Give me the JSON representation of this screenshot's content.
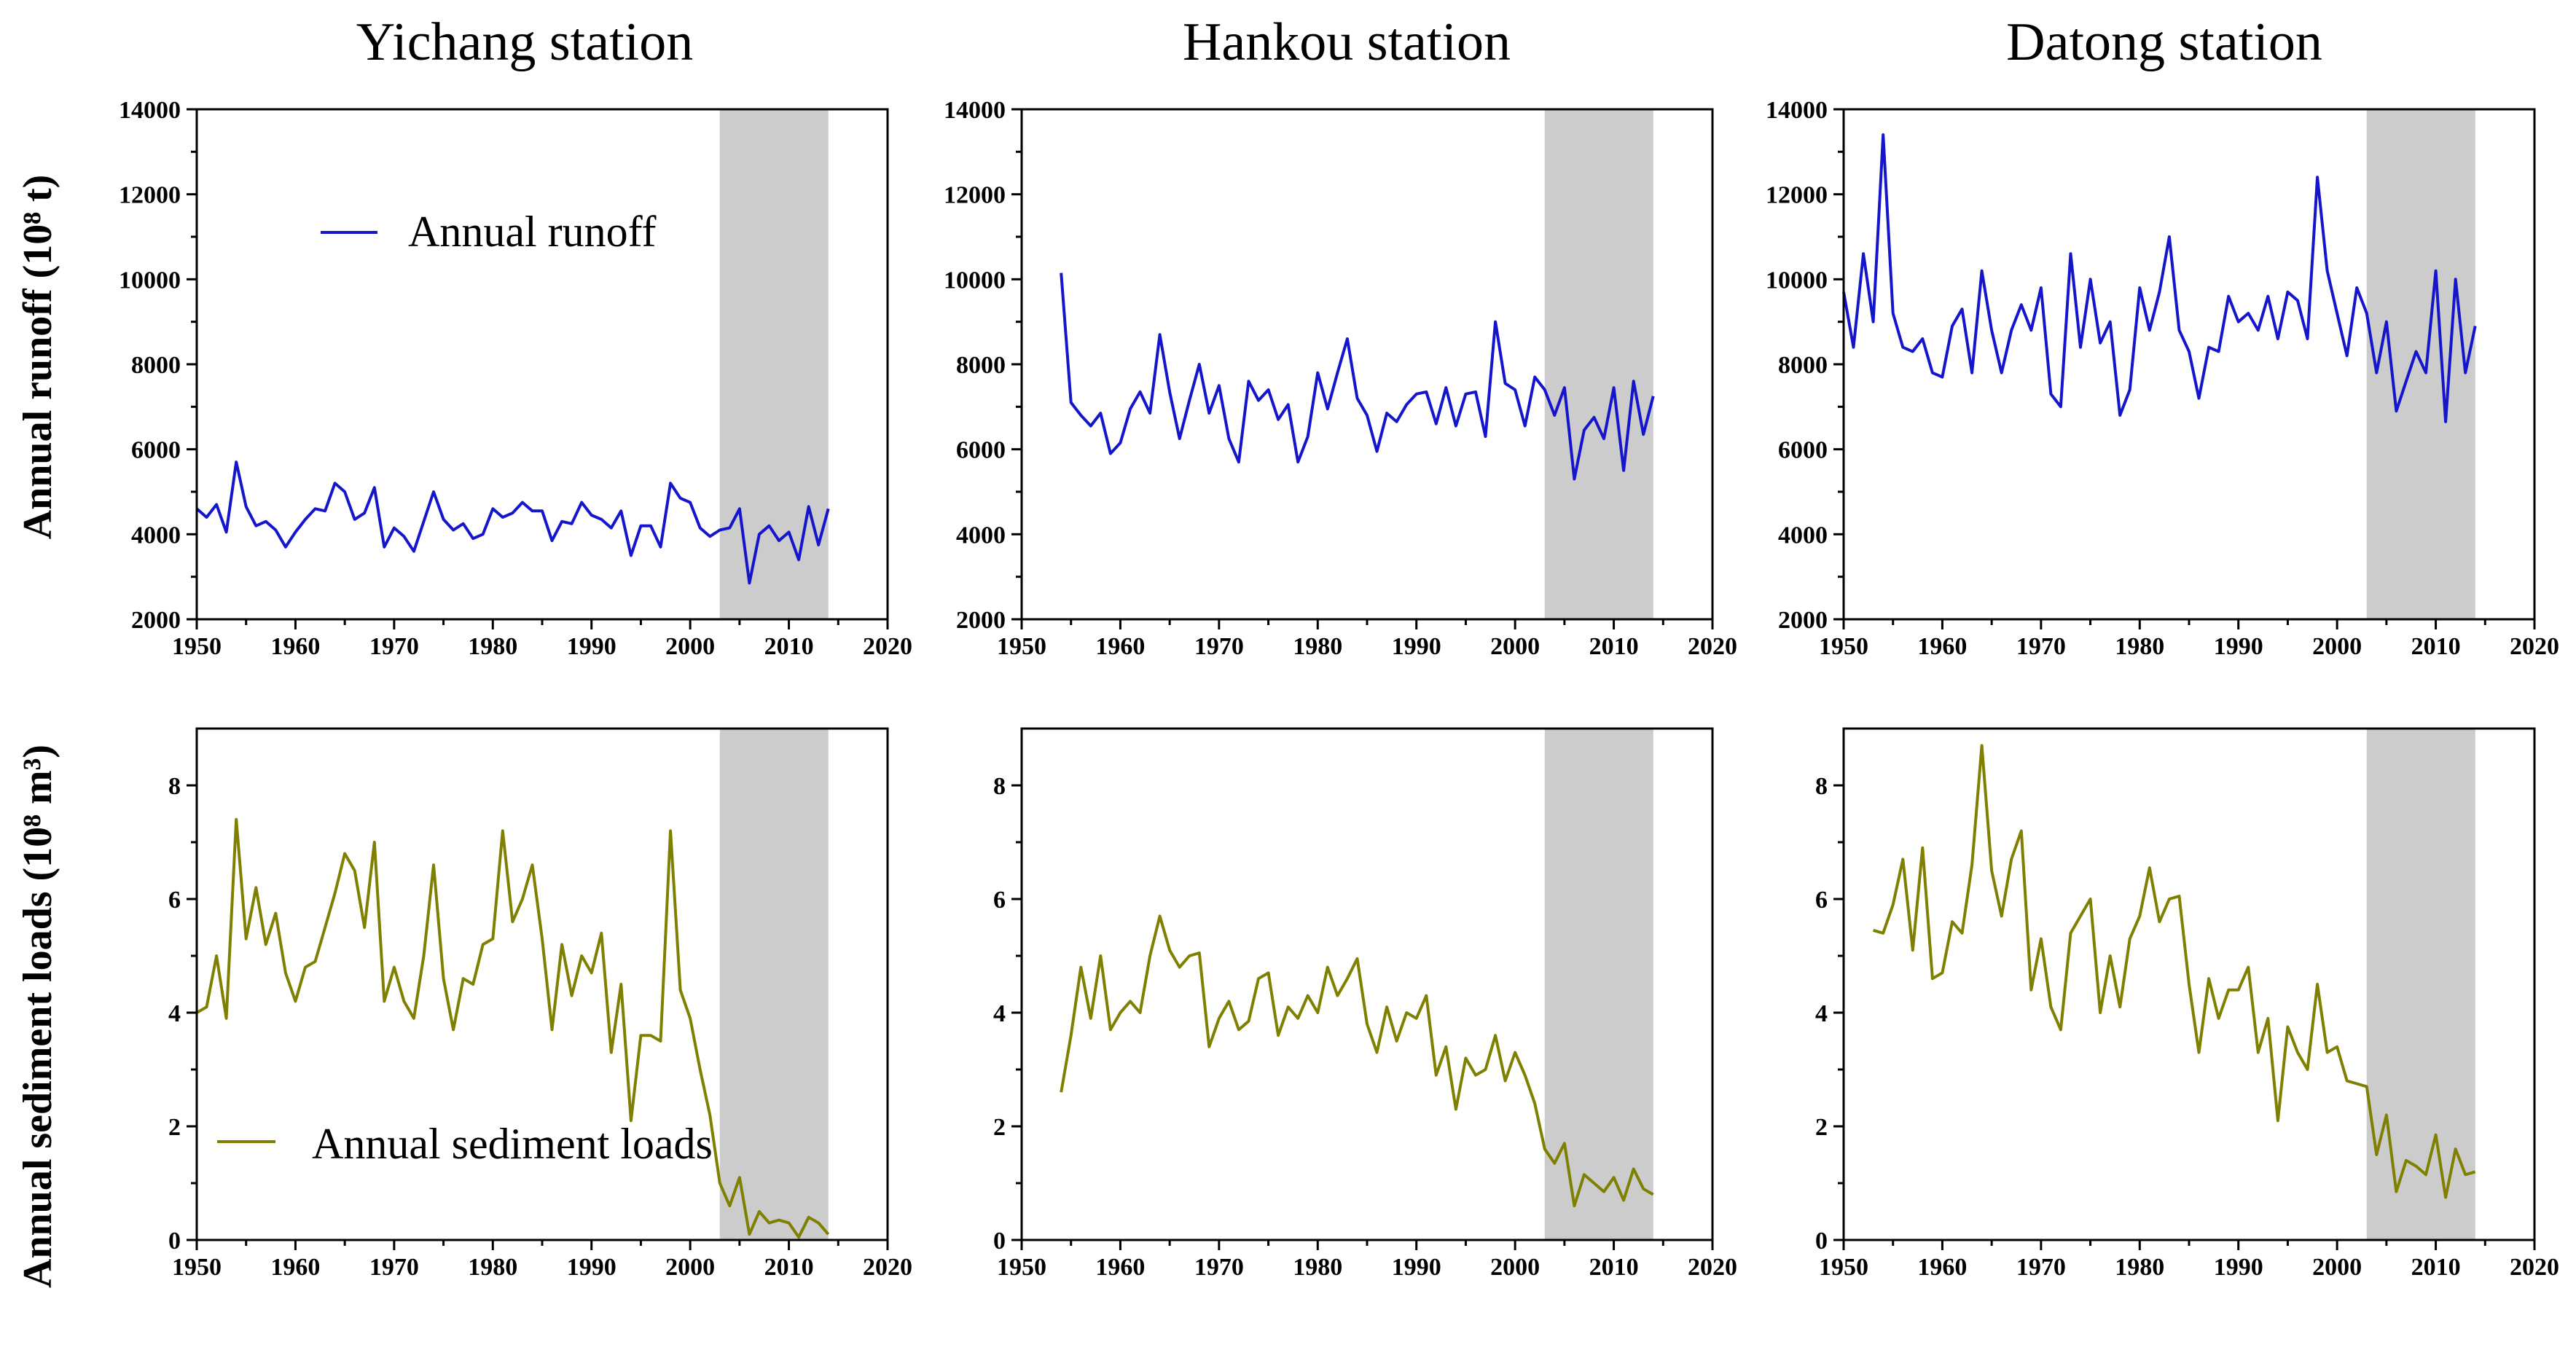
{
  "chart_data": [
    {
      "type": "line",
      "station": "Yichang",
      "title": "Yichang station",
      "ylabel": "Annual runoff (10⁸ t)",
      "xlim": [
        1950,
        2020
      ],
      "ylim": [
        2000,
        14000
      ],
      "xticks": [
        1950,
        1960,
        1970,
        1980,
        1990,
        2000,
        2010,
        2020
      ],
      "yticks": [
        2000,
        4000,
        6000,
        8000,
        10000,
        12000,
        14000
      ],
      "shaded_range": [
        2003,
        2014
      ],
      "legend": "Annual runoff",
      "series": [
        {
          "name": "Annual runoff",
          "color": "#1515cc",
          "x": [
            1950,
            1951,
            1952,
            1953,
            1954,
            1955,
            1956,
            1957,
            1958,
            1959,
            1960,
            1961,
            1962,
            1963,
            1964,
            1965,
            1966,
            1967,
            1968,
            1969,
            1970,
            1971,
            1972,
            1973,
            1974,
            1975,
            1976,
            1977,
            1978,
            1979,
            1980,
            1981,
            1982,
            1983,
            1984,
            1985,
            1986,
            1987,
            1988,
            1989,
            1990,
            1991,
            1992,
            1993,
            1994,
            1995,
            1996,
            1997,
            1998,
            1999,
            2000,
            2001,
            2002,
            2003,
            2004,
            2005,
            2006,
            2007,
            2008,
            2009,
            2010,
            2011,
            2012,
            2013,
            2014
          ],
          "values": [
            4600,
            4400,
            4700,
            4050,
            5700,
            4650,
            4200,
            4300,
            4100,
            3700,
            4050,
            4350,
            4600,
            4550,
            5200,
            5000,
            4350,
            4500,
            5100,
            3700,
            4150,
            3950,
            3600,
            4300,
            5000,
            4350,
            4100,
            4250,
            3900,
            4000,
            4600,
            4400,
            4500,
            4750,
            4550,
            4550,
            3850,
            4300,
            4250,
            4750,
            4450,
            4350,
            4150,
            4550,
            3500,
            4200,
            4200,
            3700,
            5200,
            4850,
            4750,
            4150,
            3950,
            4100,
            4150,
            4600,
            2850,
            4000,
            4200,
            3850,
            4050,
            3400,
            4650,
            3750,
            4600
          ]
        }
      ]
    },
    {
      "type": "line",
      "station": "Hankou",
      "title": "Hankou station",
      "xlim": [
        1950,
        2020
      ],
      "ylim": [
        2000,
        14000
      ],
      "xticks": [
        1950,
        1960,
        1970,
        1980,
        1990,
        2000,
        2010,
        2020
      ],
      "yticks": [
        2000,
        4000,
        6000,
        8000,
        10000,
        12000,
        14000
      ],
      "shaded_range": [
        2003,
        2014
      ],
      "series": [
        {
          "name": "Annual runoff",
          "color": "#1515cc",
          "x": [
            1954,
            1955,
            1956,
            1957,
            1958,
            1959,
            1960,
            1961,
            1962,
            1963,
            1964,
            1965,
            1966,
            1967,
            1968,
            1969,
            1970,
            1971,
            1972,
            1973,
            1974,
            1975,
            1976,
            1977,
            1978,
            1979,
            1980,
            1981,
            1982,
            1983,
            1984,
            1985,
            1986,
            1987,
            1988,
            1989,
            1990,
            1991,
            1992,
            1993,
            1994,
            1995,
            1996,
            1997,
            1998,
            1999,
            2000,
            2001,
            2002,
            2003,
            2004,
            2005,
            2006,
            2007,
            2008,
            2009,
            2010,
            2011,
            2012,
            2013,
            2014
          ],
          "values": [
            10150,
            7100,
            6800,
            6550,
            6850,
            5900,
            6150,
            6950,
            7350,
            6850,
            8700,
            7350,
            6250,
            7150,
            8000,
            6850,
            7500,
            6250,
            5700,
            7600,
            7150,
            7400,
            6700,
            7050,
            5700,
            6300,
            7800,
            6950,
            7800,
            8600,
            7200,
            6800,
            5950,
            6850,
            6650,
            7050,
            7300,
            7350,
            6600,
            7450,
            6550,
            7300,
            7350,
            6300,
            9000,
            7550,
            7400,
            6550,
            7700,
            7400,
            6800,
            7450,
            5300,
            6450,
            6750,
            6250,
            7450,
            5500,
            7600,
            6350,
            7250
          ]
        }
      ]
    },
    {
      "type": "line",
      "station": "Datong",
      "title": "Datong station",
      "xlim": [
        1950,
        2020
      ],
      "ylim": [
        2000,
        14000
      ],
      "xticks": [
        1950,
        1960,
        1970,
        1980,
        1990,
        2000,
        2010,
        2020
      ],
      "yticks": [
        2000,
        4000,
        6000,
        8000,
        10000,
        12000,
        14000
      ],
      "shaded_range": [
        2003,
        2014
      ],
      "series": [
        {
          "name": "Annual runoff",
          "color": "#1515cc",
          "x": [
            1950,
            1951,
            1952,
            1953,
            1954,
            1955,
            1956,
            1957,
            1958,
            1959,
            1960,
            1961,
            1962,
            1963,
            1964,
            1965,
            1966,
            1967,
            1968,
            1969,
            1970,
            1971,
            1972,
            1973,
            1974,
            1975,
            1976,
            1977,
            1978,
            1979,
            1980,
            1981,
            1982,
            1983,
            1984,
            1985,
            1986,
            1987,
            1988,
            1989,
            1990,
            1991,
            1992,
            1993,
            1994,
            1995,
            1996,
            1997,
            1998,
            1999,
            2000,
            2001,
            2002,
            2003,
            2004,
            2005,
            2006,
            2007,
            2008,
            2009,
            2010,
            2011,
            2012,
            2013,
            2014
          ],
          "values": [
            9700,
            8400,
            10600,
            9000,
            13400,
            9200,
            8400,
            8300,
            8600,
            7800,
            7700,
            8900,
            9300,
            7800,
            10200,
            8800,
            7800,
            8800,
            9400,
            8800,
            9800,
            7300,
            7000,
            10600,
            8400,
            10000,
            8500,
            9000,
            6800,
            7400,
            9800,
            8800,
            9700,
            11000,
            8800,
            8300,
            7200,
            8400,
            8300,
            9600,
            9000,
            9200,
            8800,
            9600,
            8600,
            9700,
            9500,
            8600,
            12400,
            10200,
            9200,
            8200,
            9800,
            9200,
            7800,
            9000,
            6900,
            7600,
            8300,
            7800,
            10200,
            6650,
            10000,
            7800,
            8900
          ]
        }
      ]
    },
    {
      "type": "line",
      "station": "Yichang",
      "ylabel": "Annual sediment loads (10⁸ m³)",
      "xlim": [
        1950,
        2020
      ],
      "ylim": [
        0,
        9
      ],
      "xticks": [
        1950,
        1960,
        1970,
        1980,
        1990,
        2000,
        2010,
        2020
      ],
      "yticks": [
        0,
        2,
        4,
        6,
        8
      ],
      "shaded_range": [
        2003,
        2014
      ],
      "legend": "Annual sediment loads",
      "series": [
        {
          "name": "Annual sediment loads",
          "color": "#808000",
          "x": [
            1950,
            1951,
            1952,
            1953,
            1954,
            1955,
            1956,
            1957,
            1958,
            1959,
            1960,
            1961,
            1962,
            1963,
            1964,
            1965,
            1966,
            1967,
            1968,
            1969,
            1970,
            1971,
            1972,
            1973,
            1974,
            1975,
            1976,
            1977,
            1978,
            1979,
            1980,
            1981,
            1982,
            1983,
            1984,
            1985,
            1986,
            1987,
            1988,
            1989,
            1990,
            1991,
            1992,
            1993,
            1994,
            1995,
            1996,
            1997,
            1998,
            1999,
            2000,
            2001,
            2002,
            2003,
            2004,
            2005,
            2006,
            2007,
            2008,
            2009,
            2010,
            2011,
            2012,
            2013,
            2014
          ],
          "values": [
            4.0,
            4.1,
            5.0,
            3.9,
            7.4,
            5.3,
            6.2,
            5.2,
            5.75,
            4.7,
            4.2,
            4.8,
            4.9,
            5.5,
            6.1,
            6.8,
            6.5,
            5.5,
            7.0,
            4.2,
            4.8,
            4.2,
            3.9,
            5.0,
            6.6,
            4.6,
            3.7,
            4.6,
            4.5,
            5.2,
            5.3,
            7.2,
            5.6,
            6.0,
            6.6,
            5.3,
            3.7,
            5.2,
            4.3,
            5.0,
            4.7,
            5.4,
            3.3,
            4.5,
            2.1,
            3.6,
            3.6,
            3.5,
            7.2,
            4.4,
            3.9,
            3.0,
            2.2,
            1.0,
            0.6,
            1.1,
            0.1,
            0.5,
            0.3,
            0.35,
            0.3,
            0.05,
            0.4,
            0.3,
            0.1
          ]
        }
      ]
    },
    {
      "type": "line",
      "station": "Hankou",
      "xlim": [
        1950,
        2020
      ],
      "ylim": [
        0,
        9
      ],
      "xticks": [
        1950,
        1960,
        1970,
        1980,
        1990,
        2000,
        2010,
        2020
      ],
      "yticks": [
        0,
        2,
        4,
        6,
        8
      ],
      "shaded_range": [
        2003,
        2014
      ],
      "series": [
        {
          "name": "Annual sediment loads",
          "color": "#808000",
          "x": [
            1954,
            1955,
            1956,
            1957,
            1958,
            1959,
            1960,
            1961,
            1962,
            1963,
            1964,
            1965,
            1966,
            1967,
            1968,
            1969,
            1970,
            1971,
            1972,
            1973,
            1974,
            1975,
            1976,
            1977,
            1978,
            1979,
            1980,
            1981,
            1982,
            1983,
            1984,
            1985,
            1986,
            1987,
            1988,
            1989,
            1990,
            1991,
            1992,
            1993,
            1994,
            1995,
            1996,
            1997,
            1998,
            1999,
            2000,
            2001,
            2002,
            2003,
            2004,
            2005,
            2006,
            2007,
            2008,
            2009,
            2010,
            2011,
            2012,
            2013,
            2014
          ],
          "values": [
            2.6,
            3.6,
            4.8,
            3.9,
            5.0,
            3.7,
            4.0,
            4.2,
            4.0,
            5.0,
            5.7,
            5.1,
            4.8,
            5.0,
            5.05,
            3.4,
            3.9,
            4.2,
            3.7,
            3.85,
            4.6,
            4.7,
            3.6,
            4.1,
            3.9,
            4.3,
            4.0,
            4.8,
            4.3,
            4.6,
            4.95,
            3.8,
            3.3,
            4.1,
            3.5,
            4.0,
            3.9,
            4.3,
            2.9,
            3.4,
            2.3,
            3.2,
            2.9,
            3.0,
            3.6,
            2.8,
            3.3,
            2.9,
            2.4,
            1.6,
            1.35,
            1.7,
            0.6,
            1.15,
            1.0,
            0.85,
            1.1,
            0.7,
            1.25,
            0.9,
            0.8
          ]
        }
      ]
    },
    {
      "type": "line",
      "station": "Datong",
      "xlim": [
        1950,
        2020
      ],
      "ylim": [
        0,
        9
      ],
      "xticks": [
        1950,
        1960,
        1970,
        1980,
        1990,
        2000,
        2010,
        2020
      ],
      "yticks": [
        0,
        2,
        4,
        6,
        8
      ],
      "shaded_range": [
        2003,
        2014
      ],
      "series": [
        {
          "name": "Annual sediment loads",
          "color": "#808000",
          "x": [
            1953,
            1954,
            1955,
            1956,
            1957,
            1958,
            1959,
            1960,
            1961,
            1962,
            1963,
            1964,
            1965,
            1966,
            1967,
            1968,
            1969,
            1970,
            1971,
            1972,
            1973,
            1974,
            1975,
            1976,
            1977,
            1978,
            1979,
            1980,
            1981,
            1982,
            1983,
            1984,
            1985,
            1986,
            1987,
            1988,
            1989,
            1990,
            1991,
            1992,
            1993,
            1994,
            1995,
            1996,
            1997,
            1998,
            1999,
            2000,
            2001,
            2002,
            2003,
            2004,
            2005,
            2006,
            2007,
            2008,
            2009,
            2010,
            2011,
            2012,
            2013,
            2014
          ],
          "values": [
            5.45,
            5.4,
            5.9,
            6.7,
            5.1,
            6.9,
            4.6,
            4.7,
            5.6,
            5.4,
            6.6,
            8.7,
            6.5,
            5.7,
            6.7,
            7.2,
            4.4,
            5.3,
            4.1,
            3.7,
            5.4,
            5.7,
            6.0,
            4.0,
            5.0,
            4.1,
            5.3,
            5.7,
            6.55,
            5.6,
            6.0,
            6.05,
            4.5,
            3.3,
            4.6,
            3.9,
            4.4,
            4.4,
            4.8,
            3.3,
            3.9,
            2.1,
            3.75,
            3.3,
            3.0,
            4.5,
            3.3,
            3.4,
            2.8,
            2.75,
            2.7,
            1.5,
            2.2,
            0.85,
            1.4,
            1.3,
            1.15,
            1.85,
            0.75,
            1.6,
            1.15,
            1.2
          ]
        }
      ]
    }
  ]
}
